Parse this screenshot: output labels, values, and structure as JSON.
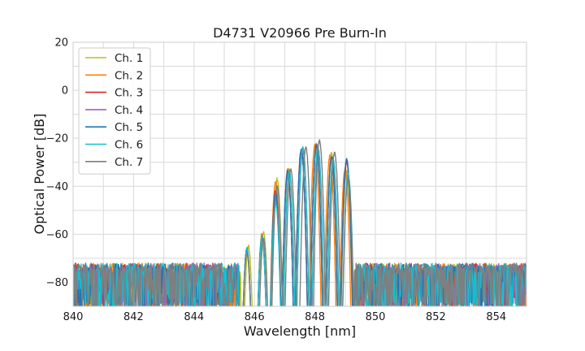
{
  "chart_data": {
    "type": "line",
    "title": "D4731 V20966 Pre Burn-In",
    "xlabel": "Wavelength [nm]",
    "ylabel": "Optical Power [dB]",
    "xlim": [
      840,
      855
    ],
    "ylim": [
      -90,
      20
    ],
    "xticks": [
      840,
      842,
      844,
      846,
      848,
      850,
      852,
      854
    ],
    "yticks": [
      -80,
      -60,
      -40,
      -20,
      0,
      20
    ],
    "ytick_labels": [
      "−80",
      "−60",
      "−40",
      "−20",
      "0",
      "20"
    ],
    "grid": true,
    "legend_position": "upper-left",
    "noise_floor_db": -80,
    "series": [
      {
        "name": "Ch. 1",
        "color": "#bcbd22",
        "edge_low": 845.55,
        "edge_high": 849.35,
        "peaks": [
          [
            845.8,
            -65
          ],
          [
            846.3,
            -59
          ],
          [
            846.75,
            -37
          ],
          [
            847.15,
            -33
          ],
          [
            847.6,
            -24
          ],
          [
            848.05,
            -22
          ],
          [
            848.55,
            -26
          ],
          [
            849.05,
            -34
          ]
        ]
      },
      {
        "name": "Ch. 2",
        "color": "#ff7f0e",
        "edge_low": 845.5,
        "edge_high": 849.3,
        "peaks": [
          [
            845.75,
            -66
          ],
          [
            846.25,
            -60
          ],
          [
            846.7,
            -38
          ],
          [
            847.1,
            -33
          ],
          [
            847.55,
            -25
          ],
          [
            848.0,
            -23
          ],
          [
            848.5,
            -27
          ],
          [
            849.0,
            -33
          ]
        ]
      },
      {
        "name": "Ch. 3",
        "color": "#d62728",
        "edge_low": 845.5,
        "edge_high": 849.3,
        "peaks": [
          [
            845.75,
            -66
          ],
          [
            846.25,
            -61
          ],
          [
            846.7,
            -42
          ],
          [
            847.1,
            -34
          ],
          [
            847.55,
            -25
          ],
          [
            848.05,
            -23
          ],
          [
            848.55,
            -28
          ],
          [
            849.05,
            -30
          ]
        ]
      },
      {
        "name": "Ch. 4",
        "color": "#9467bd",
        "edge_low": 845.5,
        "edge_high": 849.35,
        "peaks": [
          [
            845.75,
            -67
          ],
          [
            846.25,
            -62
          ],
          [
            846.7,
            -45
          ],
          [
            847.1,
            -35
          ],
          [
            847.6,
            -25
          ],
          [
            848.1,
            -24
          ],
          [
            848.6,
            -29
          ],
          [
            849.05,
            -29
          ]
        ]
      },
      {
        "name": "Ch. 5",
        "color": "#1f77b4",
        "edge_low": 845.5,
        "edge_high": 849.3,
        "peaks": [
          [
            845.75,
            -66
          ],
          [
            846.25,
            -61
          ],
          [
            846.7,
            -43
          ],
          [
            847.1,
            -34
          ],
          [
            847.55,
            -25
          ],
          [
            848.05,
            -23
          ],
          [
            848.55,
            -28
          ],
          [
            849.05,
            -29
          ]
        ]
      },
      {
        "name": "Ch. 6",
        "color": "#17becf",
        "edge_low": 845.5,
        "edge_high": 849.35,
        "peaks": [
          [
            845.75,
            -66
          ],
          [
            846.25,
            -61
          ],
          [
            846.7,
            -47
          ],
          [
            847.15,
            -34
          ],
          [
            847.6,
            -24
          ],
          [
            848.1,
            -24
          ],
          [
            848.6,
            -29
          ],
          [
            849.1,
            -35
          ]
        ]
      },
      {
        "name": "Ch. 7",
        "color": "#7f7f7f",
        "edge_low": 845.5,
        "edge_high": 849.3,
        "peaks": [
          [
            845.75,
            -68
          ],
          [
            846.3,
            -62
          ],
          [
            846.75,
            -40
          ],
          [
            847.2,
            -33
          ],
          [
            847.7,
            -24
          ],
          [
            848.15,
            -21
          ],
          [
            848.65,
            -26
          ],
          [
            849.1,
            -37
          ]
        ]
      }
    ]
  }
}
